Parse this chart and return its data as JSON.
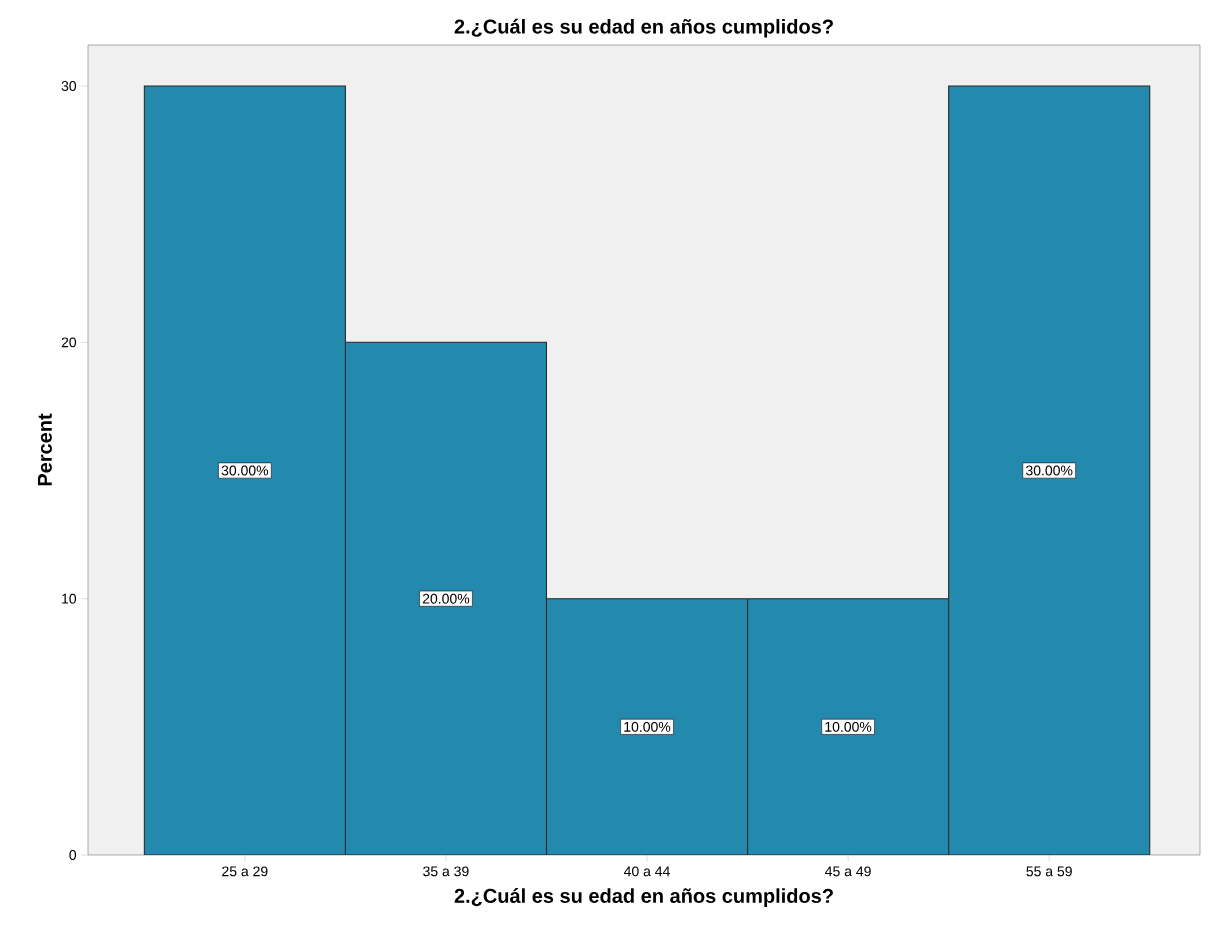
{
  "chart_data": {
    "type": "bar",
    "title": "2.¿Cuál es su edad en años cumplidos?",
    "xlabel": "2.¿Cuál es su edad en años cumplidos?",
    "ylabel": "Percent",
    "categories": [
      "25 a 29",
      "35 a 39",
      "40 a 44",
      "45 a 49",
      "55 a 59"
    ],
    "values": [
      30,
      20,
      10,
      10,
      30
    ],
    "value_labels": [
      "30.00%",
      "20.00%",
      "10.00%",
      "10.00%",
      "30.00%"
    ],
    "color": "#2389ad",
    "ylim": [
      0,
      31.6
    ],
    "yticks": [
      0,
      10,
      20,
      30
    ]
  }
}
